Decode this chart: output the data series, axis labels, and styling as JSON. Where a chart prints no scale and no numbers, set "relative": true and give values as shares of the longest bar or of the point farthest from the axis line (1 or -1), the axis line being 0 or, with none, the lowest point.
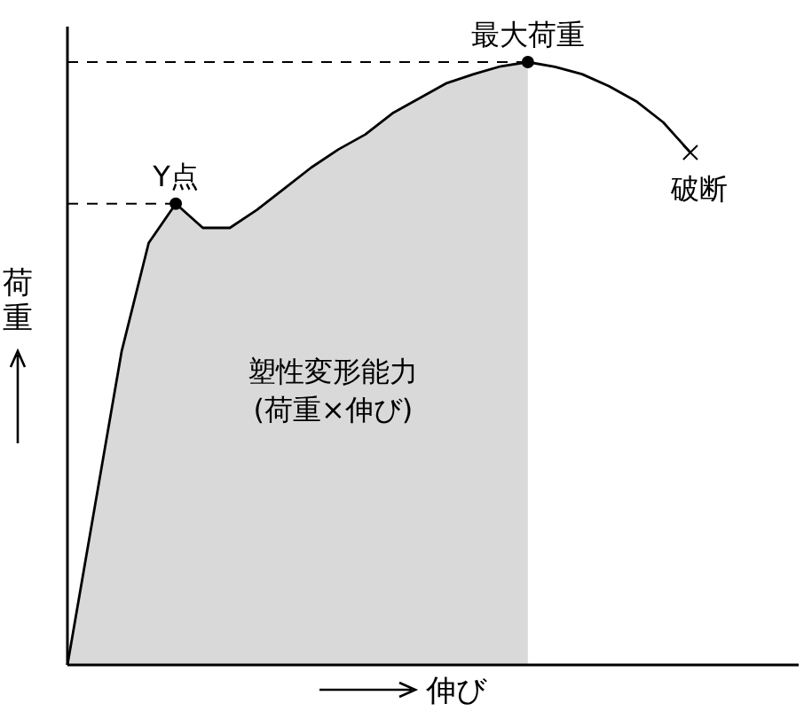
{
  "chart_data": {
    "type": "line",
    "relative": true,
    "xlabel": "伸び",
    "ylabel": "荷重",
    "categories": [
      null,
      null,
      null,
      null,
      null,
      null,
      null,
      null,
      null,
      null,
      null,
      null,
      null,
      null,
      null,
      null,
      null,
      null,
      null,
      null,
      null,
      null,
      null,
      null
    ],
    "series": [
      {
        "type": "area",
        "color": "#d9d9d9",
        "values": [
          0,
          0.26,
          0.52,
          0.7,
          0.765,
          0.725,
          0.725,
          0.755,
          0.79,
          0.825,
          0.855,
          0.88,
          0.915,
          0.94,
          0.965,
          0.98,
          0.993,
          1,
          null,
          null,
          null,
          null,
          null,
          null
        ]
      },
      {
        "color": "#000000",
        "values": [
          0,
          0.26,
          0.52,
          0.7,
          0.765,
          0.725,
          0.725,
          0.755,
          0.79,
          0.825,
          0.855,
          0.88,
          0.915,
          0.94,
          0.965,
          0.98,
          0.993,
          1,
          0.992,
          0.98,
          0.96,
          0.935,
          0.9,
          0.85
        ]
      }
    ],
    "ref_lines": [
      {
        "axis": "y",
        "value": 0.765,
        "line_style": "dashed"
      },
      {
        "axis": "y",
        "value": 1,
        "line_style": "dashed"
      }
    ],
    "annotations": [
      "Y点",
      "最大荷重",
      "破断",
      "塑性変形能力\n(荷重×伸び)"
    ]
  }
}
